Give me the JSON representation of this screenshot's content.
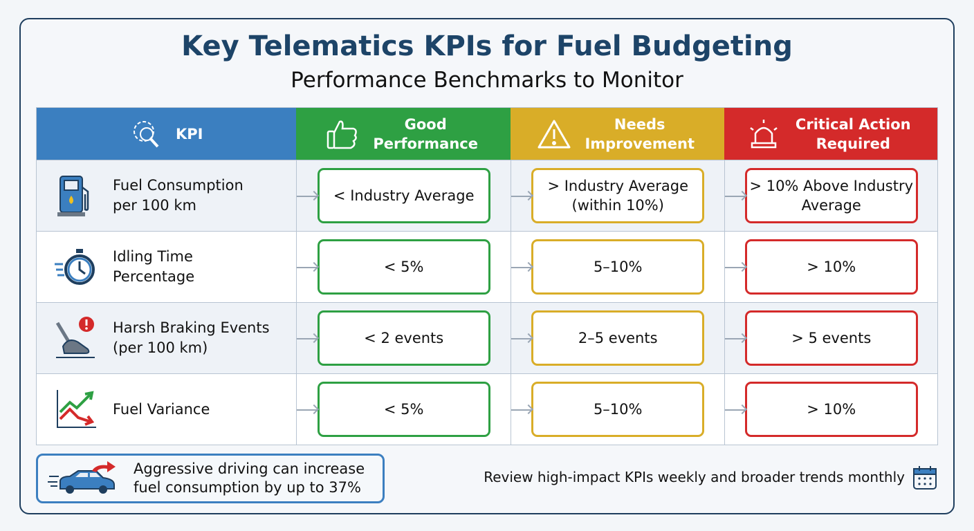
{
  "title": "Key Telematics KPIs for Fuel Budgeting",
  "subtitle": "Performance Benchmarks to Monitor",
  "colors": {
    "kpi": "#3b7fc0",
    "good": "#2ea043",
    "needs": "#d9ad28",
    "critical": "#d42a2a",
    "title": "#1d4468"
  },
  "headers": [
    {
      "label": "KPI",
      "icon": "gear-magnifier-icon"
    },
    {
      "label": "Good Performance",
      "icon": "thumbs-up-icon"
    },
    {
      "label": "Needs Improvement",
      "icon": "warning-icon"
    },
    {
      "label": "Critical Action Required",
      "icon": "siren-icon"
    }
  ],
  "rows": [
    {
      "kpi": "Fuel Consumption per 100 km",
      "icon": "fuel-pump-icon",
      "good": "< Industry Average",
      "needs": "> Industry Average (within 10%)",
      "critical": "> 10% Above Industry Average"
    },
    {
      "kpi": "Idling Time Percentage",
      "icon": "stopwatch-icon",
      "good": "< 5%",
      "needs": "5–10%",
      "critical": "> 10%"
    },
    {
      "kpi": "Harsh Braking Events (per 100 km)",
      "icon": "brake-pedal-icon",
      "good": "< 2 events",
      "needs": "2–5 events",
      "critical": "> 5 events"
    },
    {
      "kpi": "Fuel Variance",
      "icon": "trend-chart-icon",
      "good": "< 5%",
      "needs": "5–10%",
      "critical": "> 10%"
    }
  ],
  "note": {
    "text": "Aggressive driving can increase fuel consumption by up to 37%",
    "icon": "speeding-car-icon"
  },
  "review": {
    "text": "Review high-impact KPIs weekly and broader trends monthly",
    "icon": "calendar-icon"
  }
}
